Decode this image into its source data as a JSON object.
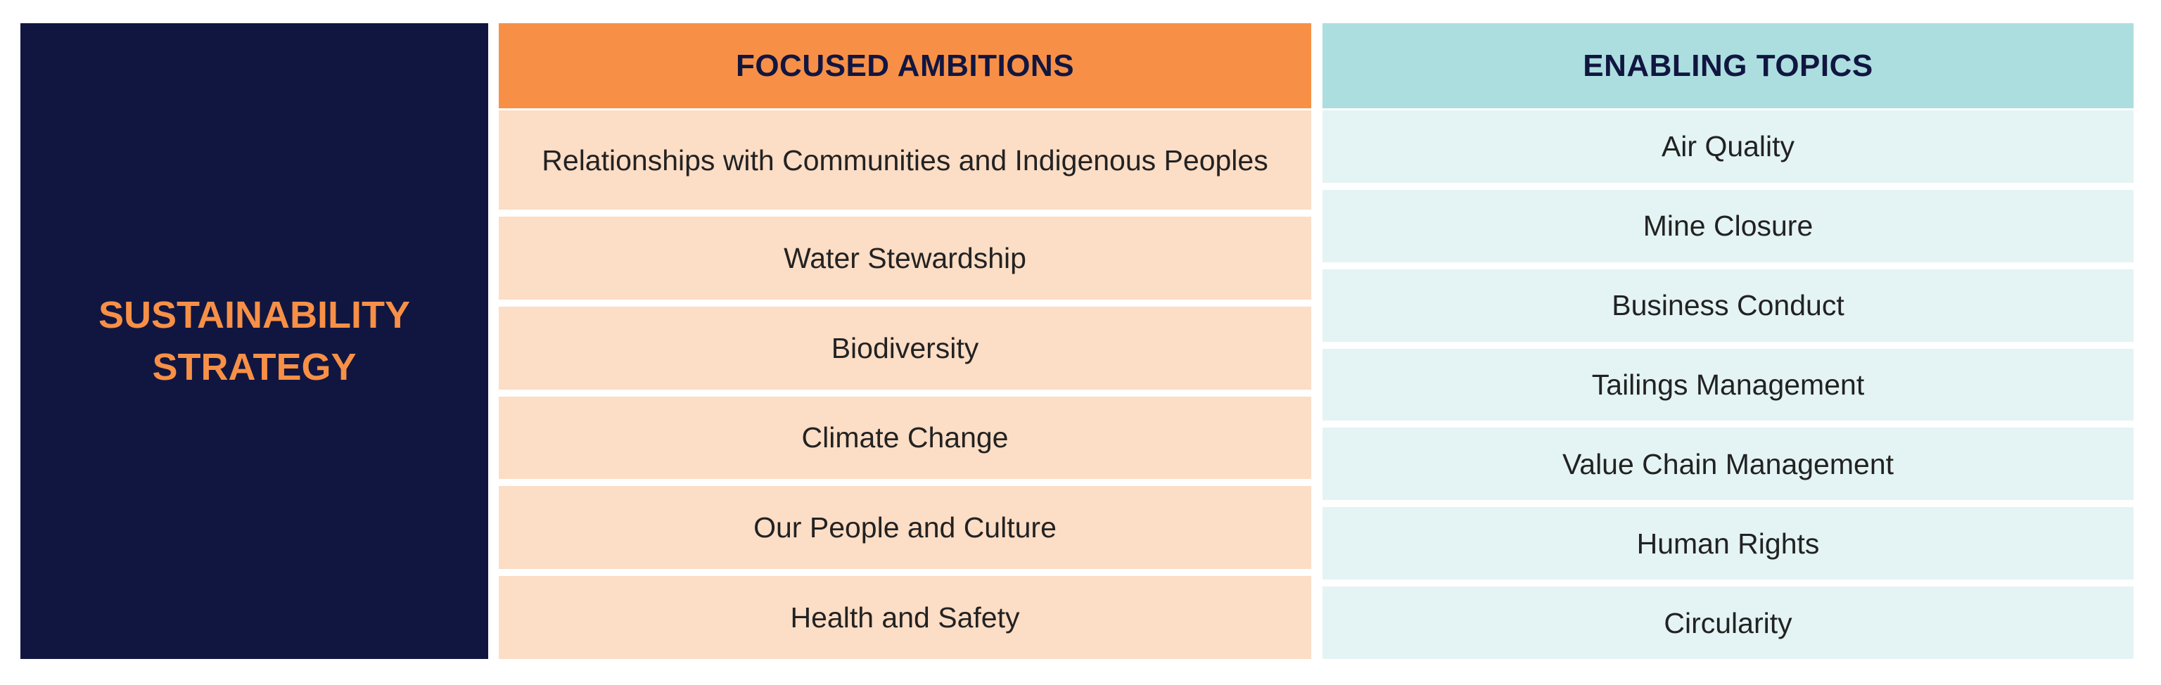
{
  "strategy": {
    "title_line1": "SUSTAINABILITY",
    "title_line2": "STRATEGY"
  },
  "focused_ambitions": {
    "header": "FOCUSED AMBITIONS",
    "items": [
      "Relationships with Communities and Indigenous Peoples",
      "Water Stewardship",
      "Biodiversity",
      "Climate Change",
      "Our People and Culture",
      "Health and Safety"
    ]
  },
  "enabling_topics": {
    "header": "ENABLING TOPICS",
    "items": [
      "Air Quality",
      "Mine Closure",
      "Business Conduct",
      "Tailings Management",
      "Value Chain Management",
      "Human Rights",
      "Circularity"
    ]
  },
  "colors": {
    "navy": "#111641",
    "orange": "#F79046",
    "light_orange": "#FCDDC5",
    "teal": "#ACDEDF",
    "light_teal": "#E4F3F3"
  }
}
